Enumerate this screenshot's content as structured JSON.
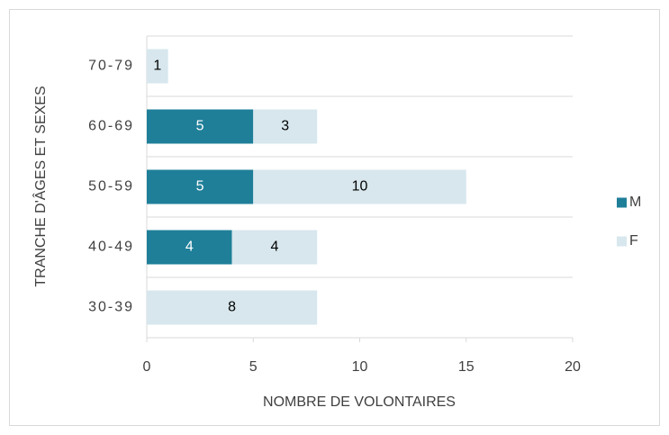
{
  "chart_data": {
    "type": "bar",
    "orientation": "horizontal",
    "stacked": true,
    "y_axis_label": "TRANCHE D'ÂGES ET SEXES",
    "x_axis_label": "NOMBRE DE VOLONTAIRES",
    "categories": [
      "30-39",
      "40-49",
      "50-59",
      "60-69",
      "70-79"
    ],
    "series": [
      {
        "name": "M",
        "color": "#1f7f99",
        "values": [
          0,
          4,
          5,
          5,
          0
        ]
      },
      {
        "name": "F",
        "color": "#d7e7ed",
        "values": [
          8,
          4,
          10,
          3,
          1
        ]
      }
    ],
    "xlim": [
      0,
      20
    ],
    "xticks": [
      0,
      5,
      10,
      15,
      20
    ],
    "grid": true,
    "legend": "right"
  }
}
